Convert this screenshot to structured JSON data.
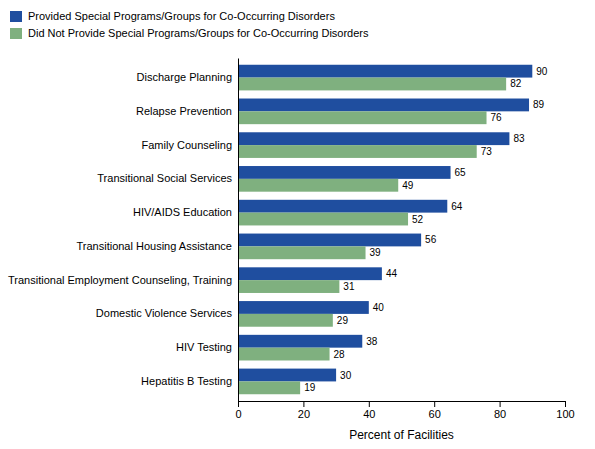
{
  "chart_data": {
    "type": "bar",
    "orientation": "horizontal",
    "categories": [
      "Hepatitis B Testing",
      "HIV Testing",
      "Domestic Violence Services",
      "Transitional Employment Counseling, Training",
      "Transitional Housing Assistance",
      "HIV/AIDS Education",
      "Transitional Social Services",
      "Family Counseling",
      "Relapse Prevention",
      "Discharge Planning"
    ],
    "series": [
      {
        "name": "Provided Special Programs/Groups for Co-Occurring Disorders",
        "color": "#1F4E9F",
        "values": [
          30,
          38,
          40,
          44,
          56,
          64,
          65,
          83,
          89,
          90
        ]
      },
      {
        "name": "Did Not Provide Special Programs/Groups for Co-Occurring Disorders",
        "color": "#7FB07F",
        "values": [
          19,
          28,
          29,
          31,
          39,
          52,
          49,
          73,
          76,
          82
        ]
      }
    ],
    "xlabel": "Percent of Facilities",
    "xlim": [
      0,
      100
    ],
    "xticks": [
      0,
      20,
      40,
      60,
      80,
      100
    ],
    "data_labels": true,
    "grid": false,
    "legend": "top-left"
  }
}
